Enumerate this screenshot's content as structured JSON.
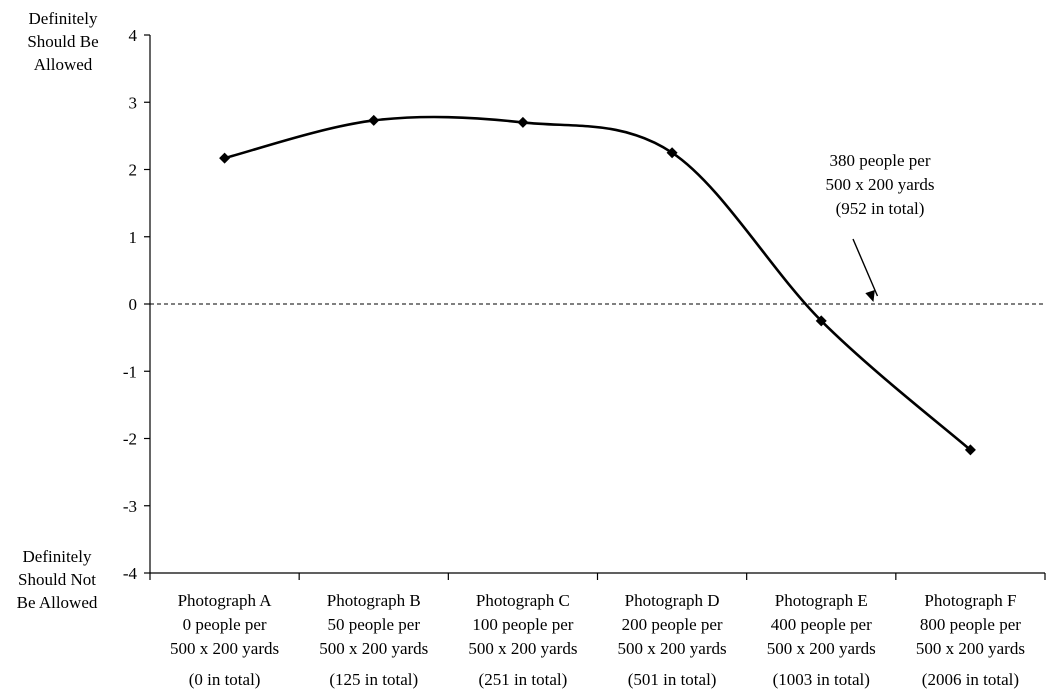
{
  "chart_data": {
    "type": "line",
    "y_axis_top_label": [
      "Definitely",
      "Should Be",
      "Allowed"
    ],
    "y_axis_bottom_label": [
      "Definitely",
      "Should Not",
      "Be Allowed"
    ],
    "ylim": [
      -4,
      4
    ],
    "yticks": [
      "4",
      "3",
      "2",
      "1",
      "0",
      "-1",
      "-2",
      "-3",
      "-4"
    ],
    "grid": false,
    "reference_line": {
      "y": 0,
      "style": "dashed"
    },
    "categories": [
      [
        "Photograph A",
        "0 people per",
        "500 x 200 yards",
        "(0 in total)"
      ],
      [
        "Photograph B",
        "50 people per",
        "500 x 200 yards",
        "(125 in total)"
      ],
      [
        "Photograph C",
        "100 people per",
        "500 x 200 yards",
        "(251 in total)"
      ],
      [
        "Photograph D",
        "200 people per",
        "500 x 200 yards",
        "(501 in total)"
      ],
      [
        "Photograph E",
        "400 people per",
        "500 x 200 yards",
        "(1003 in total)"
      ],
      [
        "Photograph F",
        "800 people per",
        "500 x 200 yards",
        "(2006 in total)"
      ]
    ],
    "series": [
      {
        "values": [
          2.17,
          2.73,
          2.7,
          2.25,
          -0.25,
          -2.17
        ],
        "marker": "diamond",
        "smooth": true
      }
    ],
    "annotation": {
      "text": [
        "380 people per",
        "500 x 200 yards",
        "(952 in total)"
      ],
      "points_to": {
        "category_position": 4.85,
        "y": 0
      }
    }
  }
}
